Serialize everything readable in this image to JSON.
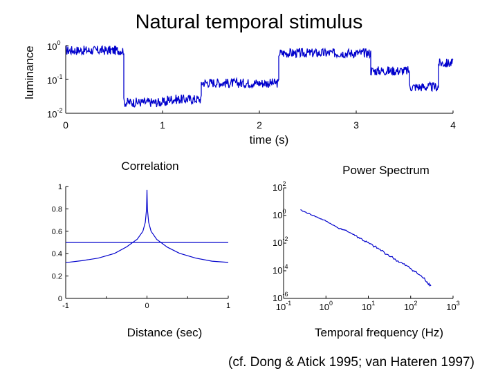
{
  "title": "Natural temporal stimulus",
  "citation": "(cf. Dong & Atick 1995; van Hateren 1997)",
  "colors": {
    "trace": "#0000cc",
    "axis": "#000000"
  },
  "chart_data": [
    {
      "type": "line",
      "title": "",
      "xlabel": "time (s)",
      "ylabel": "luminance",
      "xlim": [
        0,
        4
      ],
      "yscale": "log",
      "ylim": [
        0.01,
        1
      ],
      "xticks": [
        "0",
        "1",
        "2",
        "3",
        "4"
      ],
      "yticks": [
        {
          "base": "10",
          "exp": "0"
        },
        {
          "base": "10",
          "exp": "-1"
        },
        {
          "base": "10",
          "exp": "-2"
        }
      ],
      "segments": [
        {
          "x_start": 0.0,
          "x_end": 0.6,
          "level": 0.72
        },
        {
          "x_start": 0.6,
          "x_end": 1.05,
          "level": 0.021
        },
        {
          "x_start": 1.05,
          "x_end": 1.4,
          "level": 0.026
        },
        {
          "x_start": 1.4,
          "x_end": 1.65,
          "level": 0.08
        },
        {
          "x_start": 1.65,
          "x_end": 2.2,
          "level": 0.078
        },
        {
          "x_start": 2.2,
          "x_end": 3.15,
          "level": 0.6
        },
        {
          "x_start": 3.15,
          "x_end": 3.55,
          "level": 0.18
        },
        {
          "x_start": 3.55,
          "x_end": 3.85,
          "level": 0.06
        },
        {
          "x_start": 3.85,
          "x_end": 4.0,
          "level": 0.3
        }
      ]
    },
    {
      "type": "line",
      "title": "Correlation",
      "xlabel": "Distance (sec)",
      "ylabel": "",
      "xlim": [
        -1,
        1
      ],
      "ylim": [
        0,
        1
      ],
      "xticks": [
        "-1",
        "0",
        "1"
      ],
      "yticks": [
        "0",
        "0.2",
        "0.4",
        "0.6",
        "0.8",
        "1"
      ],
      "peak": 0.97,
      "asymptote": 0.5,
      "points": [
        {
          "x": -1.0,
          "y": 0.32
        },
        {
          "x": -0.8,
          "y": 0.335
        },
        {
          "x": -0.6,
          "y": 0.36
        },
        {
          "x": -0.4,
          "y": 0.4
        },
        {
          "x": -0.25,
          "y": 0.46
        },
        {
          "x": -0.12,
          "y": 0.53
        },
        {
          "x": -0.05,
          "y": 0.6
        },
        {
          "x": -0.02,
          "y": 0.68
        },
        {
          "x": -0.005,
          "y": 0.8
        },
        {
          "x": 0.0,
          "y": 0.97
        },
        {
          "x": 0.005,
          "y": 0.8
        },
        {
          "x": 0.02,
          "y": 0.68
        },
        {
          "x": 0.05,
          "y": 0.6
        },
        {
          "x": 0.12,
          "y": 0.53
        },
        {
          "x": 0.25,
          "y": 0.46
        },
        {
          "x": 0.4,
          "y": 0.4
        },
        {
          "x": 0.6,
          "y": 0.36
        },
        {
          "x": 0.8,
          "y": 0.335
        },
        {
          "x": 1.0,
          "y": 0.32
        }
      ]
    },
    {
      "type": "line",
      "title": "Power Spectrum",
      "xlabel": "Temporal frequency (Hz)",
      "ylabel": "",
      "xscale": "log",
      "yscale": "log",
      "xlim": [
        0.1,
        1000
      ],
      "ylim": [
        1e-06,
        100
      ],
      "xticks": [
        {
          "base": "10",
          "exp": "-1"
        },
        {
          "base": "10",
          "exp": "0"
        },
        {
          "base": "10",
          "exp": "1"
        },
        {
          "base": "10",
          "exp": "2"
        },
        {
          "base": "10",
          "exp": "3"
        }
      ],
      "yticks": [
        {
          "base": "10",
          "exp": "2"
        },
        {
          "base": "10",
          "exp": "0"
        },
        {
          "base": "10",
          "exp": "-2"
        },
        {
          "base": "10",
          "exp": "-4"
        },
        {
          "base": "10",
          "exp": "-6"
        }
      ],
      "points": [
        {
          "x": 0.25,
          "y": 2.5
        },
        {
          "x": 0.5,
          "y": 1.0
        },
        {
          "x": 1.0,
          "y": 0.4
        },
        {
          "x": 2.0,
          "y": 0.12
        },
        {
          "x": 3.0,
          "y": 0.08
        },
        {
          "x": 5.0,
          "y": 0.035
        },
        {
          "x": 10.0,
          "y": 0.01
        },
        {
          "x": 20.0,
          "y": 0.003
        },
        {
          "x": 50.0,
          "y": 0.0005
        },
        {
          "x": 100.0,
          "y": 0.00015
        },
        {
          "x": 200.0,
          "y": 3e-05
        },
        {
          "x": 300.0,
          "y": 8e-06
        }
      ]
    }
  ]
}
